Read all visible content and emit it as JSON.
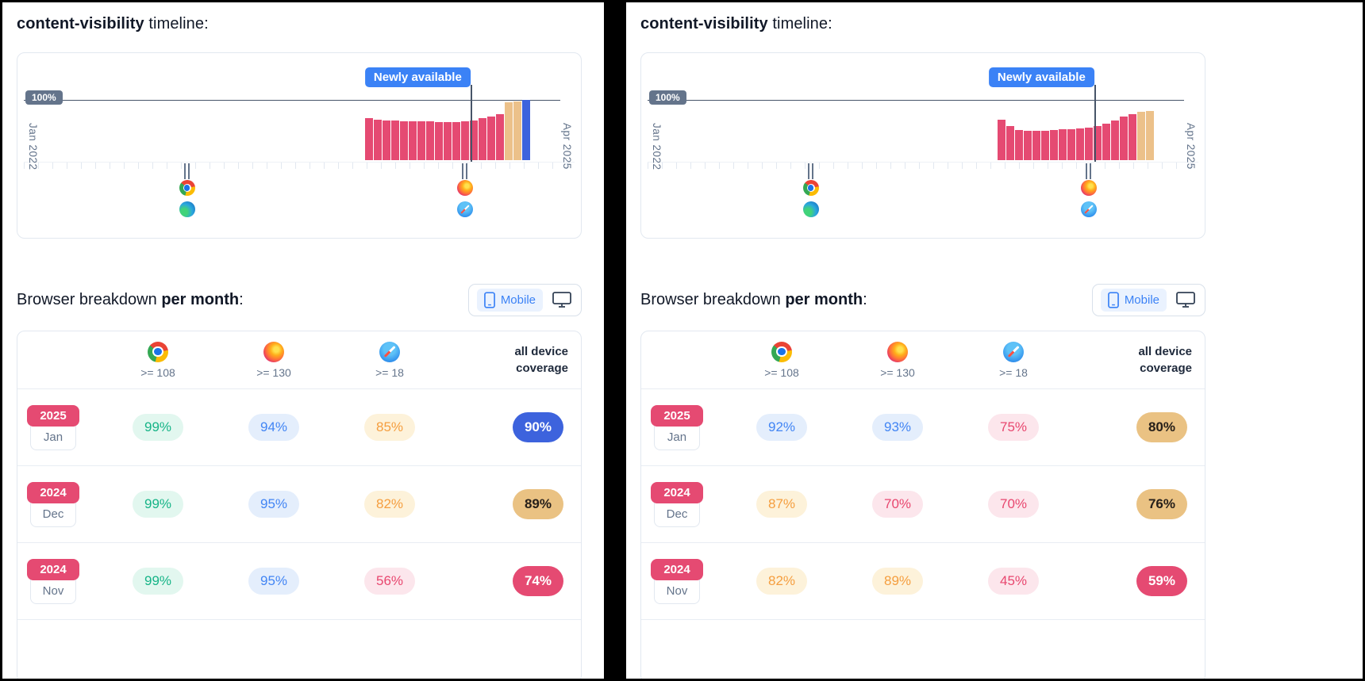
{
  "colors": {
    "accent_blue": "#3d63dd",
    "bar_pink": "#e54a72",
    "bar_tan": "#ecc18a",
    "annotation_blue": "#3b82f6",
    "badge_gray": "#64748b"
  },
  "panels": [
    {
      "title": {
        "bold": "content-visibility",
        "rest": " timeline:"
      },
      "timeline": {
        "y_label": "100%",
        "annotation": "Newly available",
        "x_start": "Jan 2022",
        "x_end": "Apr 2025",
        "bars": [
          {
            "v": 68,
            "c": "pink"
          },
          {
            "v": 65,
            "c": "pink"
          },
          {
            "v": 64,
            "c": "pink"
          },
          {
            "v": 64,
            "c": "pink"
          },
          {
            "v": 63,
            "c": "pink"
          },
          {
            "v": 63,
            "c": "pink"
          },
          {
            "v": 63,
            "c": "pink"
          },
          {
            "v": 63,
            "c": "pink"
          },
          {
            "v": 62,
            "c": "pink"
          },
          {
            "v": 62,
            "c": "pink"
          },
          {
            "v": 62,
            "c": "pink"
          },
          {
            "v": 63,
            "c": "pink"
          },
          {
            "v": 64,
            "c": "pink"
          },
          {
            "v": 68,
            "c": "pink"
          },
          {
            "v": 71,
            "c": "pink"
          },
          {
            "v": 74,
            "c": "pink"
          },
          {
            "v": 93,
            "c": "tan"
          },
          {
            "v": 95,
            "c": "tan"
          },
          {
            "v": 98,
            "c": "blue"
          }
        ]
      },
      "breakdown": {
        "heading": {
          "normal": "Browser breakdown ",
          "bold": "per month",
          "suffix": ":"
        },
        "toggle": {
          "label": "Mobile"
        },
        "columns": [
          {
            "browser": "chrome",
            "version": ">= 108"
          },
          {
            "browser": "firefox",
            "version": ">= 130"
          },
          {
            "browser": "safari",
            "version": ">= 18"
          }
        ],
        "coverage_header": {
          "line1": "all device",
          "line2": "coverage"
        },
        "rows": [
          {
            "year": "2025",
            "month": "Jan",
            "cells": [
              {
                "text": "99%",
                "tone": "green"
              },
              {
                "text": "94%",
                "tone": "blue"
              },
              {
                "text": "85%",
                "tone": "orange"
              }
            ],
            "coverage": {
              "text": "90%",
              "tone": "blue"
            }
          },
          {
            "year": "2024",
            "month": "Dec",
            "cells": [
              {
                "text": "99%",
                "tone": "green"
              },
              {
                "text": "95%",
                "tone": "blue"
              },
              {
                "text": "82%",
                "tone": "orange"
              }
            ],
            "coverage": {
              "text": "89%",
              "tone": "tan"
            }
          },
          {
            "year": "2024",
            "month": "Nov",
            "cells": [
              {
                "text": "99%",
                "tone": "green"
              },
              {
                "text": "95%",
                "tone": "blue"
              },
              {
                "text": "56%",
                "tone": "pink"
              }
            ],
            "coverage": {
              "text": "74%",
              "tone": "pink"
            }
          }
        ]
      }
    },
    {
      "title": {
        "bold": "content-visibility",
        "rest": " timeline:"
      },
      "timeline": {
        "y_label": "100%",
        "annotation": "Newly available",
        "x_start": "Jan 2022",
        "x_end": "Apr 2025",
        "bars": [
          {
            "v": 66,
            "c": "pink"
          },
          {
            "v": 55,
            "c": "pink"
          },
          {
            "v": 49,
            "c": "pink"
          },
          {
            "v": 47,
            "c": "pink"
          },
          {
            "v": 47,
            "c": "pink"
          },
          {
            "v": 48,
            "c": "pink"
          },
          {
            "v": 49,
            "c": "pink"
          },
          {
            "v": 50,
            "c": "pink"
          },
          {
            "v": 50,
            "c": "pink"
          },
          {
            "v": 51,
            "c": "pink"
          },
          {
            "v": 53,
            "c": "pink"
          },
          {
            "v": 55,
            "c": "pink"
          },
          {
            "v": 59,
            "c": "pink"
          },
          {
            "v": 64,
            "c": "pink"
          },
          {
            "v": 70,
            "c": "pink"
          },
          {
            "v": 74,
            "c": "pink"
          },
          {
            "v": 78,
            "c": "tan"
          },
          {
            "v": 80,
            "c": "tan"
          }
        ]
      },
      "breakdown": {
        "heading": {
          "normal": "Browser breakdown ",
          "bold": "per month",
          "suffix": ":"
        },
        "toggle": {
          "label": "Mobile"
        },
        "columns": [
          {
            "browser": "chrome",
            "version": ">= 108"
          },
          {
            "browser": "firefox",
            "version": ">= 130"
          },
          {
            "browser": "safari",
            "version": ">= 18"
          }
        ],
        "coverage_header": {
          "line1": "all device",
          "line2": "coverage"
        },
        "rows": [
          {
            "year": "2025",
            "month": "Jan",
            "cells": [
              {
                "text": "92%",
                "tone": "blue"
              },
              {
                "text": "93%",
                "tone": "blue"
              },
              {
                "text": "75%",
                "tone": "pink"
              }
            ],
            "coverage": {
              "text": "80%",
              "tone": "tan"
            }
          },
          {
            "year": "2024",
            "month": "Dec",
            "cells": [
              {
                "text": "87%",
                "tone": "orange"
              },
              {
                "text": "70%",
                "tone": "pink"
              },
              {
                "text": "70%",
                "tone": "pink"
              }
            ],
            "coverage": {
              "text": "76%",
              "tone": "tan"
            }
          },
          {
            "year": "2024",
            "month": "Nov",
            "cells": [
              {
                "text": "82%",
                "tone": "orange"
              },
              {
                "text": "89%",
                "tone": "orange"
              },
              {
                "text": "45%",
                "tone": "pink"
              }
            ],
            "coverage": {
              "text": "59%",
              "tone": "pink"
            }
          }
        ]
      }
    }
  ]
}
